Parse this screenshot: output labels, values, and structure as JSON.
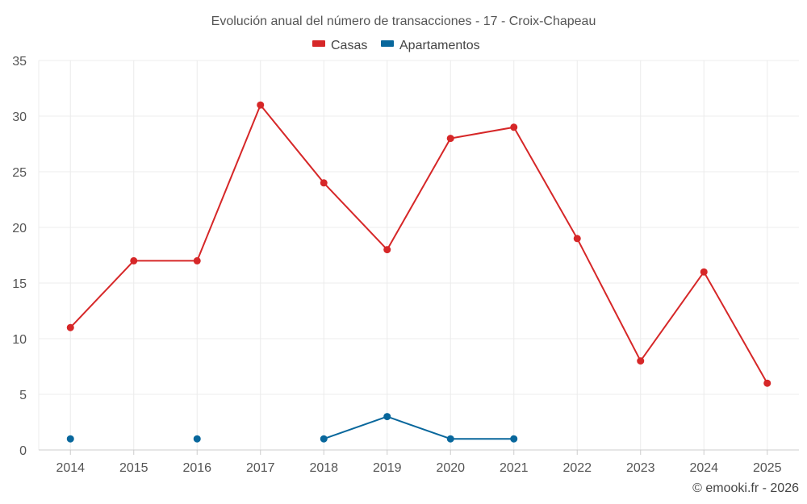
{
  "chart_data": {
    "type": "line",
    "title": "Evolución anual del número de transacciones - 17 - Croix-Chapeau",
    "categories": [
      "2014",
      "2015",
      "2016",
      "2017",
      "2018",
      "2019",
      "2020",
      "2021",
      "2022",
      "2023",
      "2024",
      "2025"
    ],
    "ylim": [
      0,
      35
    ],
    "yticks": [
      0,
      5,
      10,
      15,
      20,
      25,
      30,
      35
    ],
    "grid": true,
    "legend_position": "top-center",
    "series": [
      {
        "name": "Casas",
        "color": "#d62728",
        "values": [
          11,
          17,
          17,
          31,
          24,
          18,
          28,
          29,
          19,
          8,
          16,
          6
        ]
      },
      {
        "name": "Apartamentos",
        "color": "#08679c",
        "values": [
          1,
          null,
          1,
          null,
          1,
          3,
          1,
          1,
          null,
          null,
          null,
          null
        ]
      }
    ]
  },
  "credit": "© emooki.fr - 2026"
}
